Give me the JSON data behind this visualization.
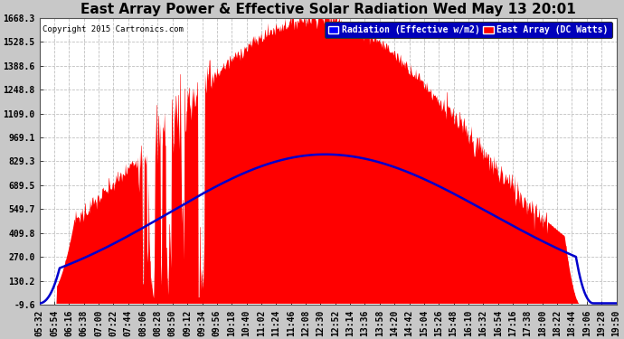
{
  "title": "East Array Power & Effective Solar Radiation Wed May 13 20:01",
  "copyright": "Copyright 2015 Cartronics.com",
  "legend_radiation": "Radiation (Effective w/m2)",
  "legend_array": "East Array (DC Watts)",
  "yticks": [
    -9.6,
    130.2,
    270.0,
    409.8,
    549.7,
    689.5,
    829.3,
    969.1,
    1109.0,
    1248.8,
    1388.6,
    1528.5,
    1668.3
  ],
  "ymin": -9.6,
  "ymax": 1668.3,
  "bg_color": "#c8c8c8",
  "plot_bg_color": "#ffffff",
  "fill_color": "#ff0000",
  "line_color": "#0000cc",
  "grid_color": "#b0b0b0",
  "title_fontsize": 11,
  "tick_fontsize": 7,
  "time_labels": [
    "05:32",
    "05:54",
    "06:16",
    "06:38",
    "07:00",
    "07:22",
    "07:44",
    "08:06",
    "08:28",
    "08:50",
    "09:12",
    "09:34",
    "09:56",
    "10:18",
    "10:40",
    "11:02",
    "11:24",
    "11:46",
    "12:08",
    "12:30",
    "12:52",
    "13:14",
    "13:36",
    "13:58",
    "14:20",
    "14:42",
    "15:04",
    "15:26",
    "15:48",
    "16:10",
    "16:32",
    "16:54",
    "17:16",
    "17:38",
    "18:00",
    "18:22",
    "18:44",
    "19:06",
    "19:28",
    "19:50"
  ]
}
